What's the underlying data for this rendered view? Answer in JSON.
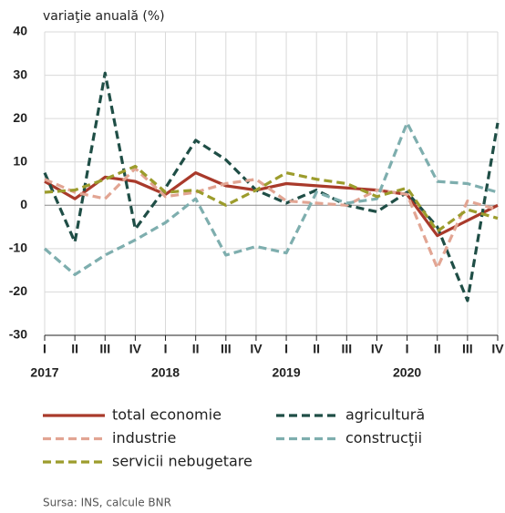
{
  "chart_data": {
    "type": "line",
    "y_label": "variaţie anuală (%)",
    "categories": [
      "I",
      "II",
      "III",
      "IV",
      "I",
      "II",
      "III",
      "IV",
      "I",
      "II",
      "III",
      "IV",
      "I",
      "II",
      "III",
      "IV"
    ],
    "year_labels": [
      "2017",
      "2018",
      "2019",
      "2020"
    ],
    "series": [
      {
        "name": "total economie",
        "color": "#a93a2b",
        "dash": false,
        "values": [
          5.5,
          1.5,
          6.5,
          5.5,
          2.5,
          7.5,
          4.5,
          3.5,
          5,
          4.5,
          4,
          3.5,
          2.5,
          -7,
          -3.5,
          0
        ]
      },
      {
        "name": "agricultură",
        "color": "#1f4e46",
        "dash": true,
        "values": [
          7.5,
          -8.5,
          30.5,
          -5.5,
          4,
          15,
          10.5,
          3.5,
          0.5,
          3.5,
          0,
          -1.5,
          3,
          -5,
          -22,
          19
        ]
      },
      {
        "name": "industrie",
        "color": "#e2a593",
        "dash": true,
        "values": [
          6,
          3,
          1.5,
          8.5,
          2,
          3,
          5,
          6,
          1,
          0.5,
          0,
          3.5,
          2.5,
          -14.5,
          1,
          -1
        ]
      },
      {
        "name": "construcţii",
        "color": "#7eaeae",
        "dash": true,
        "values": [
          -10,
          -16,
          -11.5,
          -8,
          -4,
          1.5,
          -11.5,
          -9.5,
          -11,
          3,
          0.5,
          1.5,
          19,
          5.5,
          5,
          3
        ]
      },
      {
        "name": "servicii nebugetare",
        "color": "#9c9c2c",
        "dash": true,
        "values": [
          3,
          3.5,
          6,
          9,
          3,
          3.5,
          0,
          3.5,
          7.5,
          6,
          5,
          2,
          4,
          -6,
          -1,
          -3
        ]
      }
    ],
    "ylim": [
      -30,
      40
    ],
    "yticks": [
      -30,
      -20,
      -10,
      0,
      10,
      20,
      30,
      40
    ],
    "grid": true,
    "source": "Sursa: INS, calcule BNR"
  }
}
